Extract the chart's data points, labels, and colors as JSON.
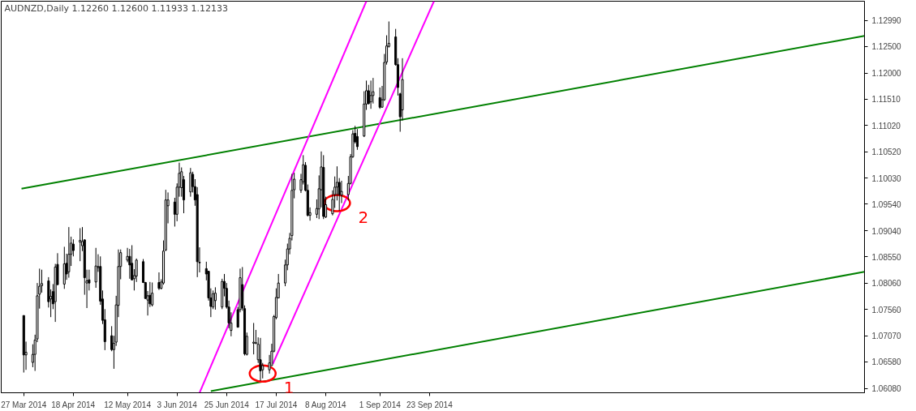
{
  "chart_data": {
    "type": "candlestick",
    "title": "AUDNZD,Daily  1.12260 1.12600 1.11933 1.12133",
    "x": [
      "2014-03-27",
      "2014-03-28",
      "2014-03-31",
      "2014-04-01",
      "2014-04-02",
      "2014-04-03",
      "2014-04-04",
      "2014-04-07",
      "2014-04-08",
      "2014-04-09",
      "2014-04-10",
      "2014-04-11",
      "2014-04-14",
      "2014-04-15",
      "2014-04-16",
      "2014-04-17",
      "2014-04-18",
      "2014-04-21",
      "2014-04-22",
      "2014-04-23",
      "2014-04-24",
      "2014-04-25",
      "2014-04-28",
      "2014-04-29",
      "2014-04-30",
      "2014-05-01",
      "2014-05-02",
      "2014-05-05",
      "2014-05-06",
      "2014-05-07",
      "2014-05-08",
      "2014-05-09",
      "2014-05-12",
      "2014-05-13",
      "2014-05-14",
      "2014-05-15",
      "2014-05-16",
      "2014-05-19",
      "2014-05-20",
      "2014-05-21",
      "2014-05-22",
      "2014-05-23",
      "2014-05-26",
      "2014-05-27",
      "2014-05-28",
      "2014-05-29",
      "2014-05-30",
      "2014-06-02",
      "2014-06-03",
      "2014-06-04",
      "2014-06-05",
      "2014-06-06",
      "2014-06-09",
      "2014-06-10",
      "2014-06-11",
      "2014-06-12",
      "2014-06-13",
      "2014-06-16",
      "2014-06-17",
      "2014-06-18",
      "2014-06-19",
      "2014-06-20",
      "2014-06-23",
      "2014-06-24",
      "2014-06-25",
      "2014-06-26",
      "2014-06-27",
      "2014-06-30",
      "2014-07-01",
      "2014-07-02",
      "2014-07-03",
      "2014-07-04",
      "2014-07-07",
      "2014-07-08",
      "2014-07-09",
      "2014-07-10",
      "2014-07-11",
      "2014-07-14",
      "2014-07-15",
      "2014-07-16",
      "2014-07-17",
      "2014-07-18",
      "2014-07-21",
      "2014-07-22",
      "2014-07-23",
      "2014-07-24",
      "2014-07-25",
      "2014-07-28",
      "2014-07-29",
      "2014-07-30",
      "2014-07-31",
      "2014-08-01",
      "2014-08-04",
      "2014-08-05",
      "2014-08-06",
      "2014-08-07",
      "2014-08-08",
      "2014-08-11",
      "2014-08-12",
      "2014-08-13",
      "2014-08-14",
      "2014-08-15",
      "2014-08-18",
      "2014-08-19",
      "2014-08-20",
      "2014-08-21",
      "2014-08-22",
      "2014-08-25",
      "2014-08-26",
      "2014-08-27",
      "2014-08-28",
      "2014-08-29",
      "2014-09-01",
      "2014-09-02",
      "2014-09-03",
      "2014-09-04",
      "2014-09-05",
      "2014-09-08",
      "2014-09-09",
      "2014-09-10",
      "2014-09-11"
    ],
    "ohlc": [
      [
        1.0745,
        1.0745,
        1.0638,
        1.0671
      ],
      [
        1.0671,
        1.0696,
        1.0643,
        1.0676
      ],
      [
        1.0657,
        1.0691,
        1.0648,
        1.0672
      ],
      [
        1.0672,
        1.0709,
        1.0641,
        1.0699
      ],
      [
        1.0701,
        1.0806,
        1.0695,
        1.0782
      ],
      [
        1.0785,
        1.0833,
        1.0758,
        1.08
      ],
      [
        1.0801,
        1.0831,
        1.0788,
        1.0805
      ],
      [
        1.081,
        1.0817,
        1.076,
        1.0771
      ],
      [
        1.0776,
        1.0794,
        1.0742,
        1.0781
      ],
      [
        1.079,
        1.0804,
        1.0757,
        1.0767
      ],
      [
        1.0771,
        1.0842,
        1.0733,
        1.0836
      ],
      [
        1.0841,
        1.0862,
        1.0802,
        1.0803
      ],
      [
        1.0804,
        1.0874,
        1.0795,
        1.0842
      ],
      [
        1.0843,
        1.0861,
        1.0812,
        1.0823
      ],
      [
        1.0827,
        1.0911,
        1.0816,
        1.086
      ],
      [
        1.086,
        1.0893,
        1.0838,
        1.0881
      ],
      [
        1.0879,
        1.0888,
        1.0856,
        1.0867
      ],
      [
        1.0883,
        1.0909,
        1.0847,
        1.0886
      ],
      [
        1.0876,
        1.0911,
        1.0866,
        1.0884
      ],
      [
        1.0887,
        1.0888,
        1.0784,
        1.0816
      ],
      [
        1.0806,
        1.0831,
        1.0759,
        1.081
      ],
      [
        1.0812,
        1.0831,
        1.0792,
        1.0806
      ],
      [
        1.0808,
        1.0872,
        1.0797,
        1.0838
      ],
      [
        1.0835,
        1.086,
        1.0827,
        1.0837
      ],
      [
        1.0837,
        1.0856,
        1.0765,
        1.0772
      ],
      [
        1.0776,
        1.0792,
        1.0729,
        1.0736
      ],
      [
        1.0737,
        1.0757,
        1.068,
        1.0696
      ],
      [
        1.0707,
        1.0725,
        1.0678,
        1.0681
      ],
      [
        1.0681,
        1.0707,
        1.0645,
        1.0693
      ],
      [
        1.0695,
        1.0782,
        1.0688,
        1.0765
      ],
      [
        1.0764,
        1.0869,
        1.0742,
        1.0837
      ],
      [
        1.0837,
        1.0869,
        1.0813,
        1.0863
      ],
      [
        1.0849,
        1.0872,
        1.0845,
        1.0856
      ],
      [
        1.0856,
        1.087,
        1.0814,
        1.084
      ],
      [
        1.0843,
        1.0877,
        1.0811,
        1.0812
      ],
      [
        1.0814,
        1.0832,
        1.0792,
        1.082
      ],
      [
        1.0819,
        1.0852,
        1.0808,
        1.0849
      ],
      [
        1.0846,
        1.0851,
        1.0806,
        1.0807
      ],
      [
        1.0807,
        1.0808,
        1.0776,
        1.0777
      ],
      [
        1.0774,
        1.0791,
        1.0745,
        1.0782
      ],
      [
        1.0783,
        1.0808,
        1.0761,
        1.0767
      ],
      [
        1.0765,
        1.0807,
        1.0762,
        1.0787
      ],
      [
        1.0807,
        1.0826,
        1.0793,
        1.0796
      ],
      [
        1.0796,
        1.0813,
        1.0794,
        1.0808
      ],
      [
        1.0806,
        1.0886,
        1.0803,
        1.0866
      ],
      [
        1.0868,
        1.0981,
        1.0866,
        1.0962
      ],
      [
        1.0951,
        1.0976,
        1.0918,
        1.0962
      ],
      [
        1.0958,
        1.0966,
        1.0912,
        1.0935
      ],
      [
        1.0935,
        1.0993,
        1.0922,
        1.0986
      ],
      [
        1.0986,
        1.1032,
        1.0968,
        1.1012
      ],
      [
        1.0985,
        1.1023,
        1.0968,
        1.1015
      ],
      [
        1.1,
        1.1007,
        1.0937,
        1.0962
      ],
      [
        1.0977,
        1.1022,
        1.0968,
        1.1013
      ],
      [
        1.101,
        1.1015,
        1.0976,
        1.0987
      ],
      [
        1.0987,
        1.1001,
        1.0951,
        1.0962
      ],
      [
        1.0972,
        1.0986,
        1.0817,
        1.0846
      ],
      [
        1.0845,
        1.0873,
        1.0826,
        1.0844
      ],
      [
        1.0833,
        1.0846,
        1.0811,
        1.0823
      ],
      [
        1.0828,
        1.0829,
        1.0773,
        1.0778
      ],
      [
        1.0778,
        1.0796,
        1.0742,
        1.0762
      ],
      [
        1.0761,
        1.0792,
        1.0757,
        1.0786
      ],
      [
        1.0773,
        1.0798,
        1.0756,
        1.0787
      ],
      [
        1.0761,
        1.0814,
        1.0757,
        1.0809
      ],
      [
        1.0809,
        1.0823,
        1.0781,
        1.0796
      ],
      [
        1.0796,
        1.0806,
        1.0758,
        1.0761
      ],
      [
        1.0761,
        1.0773,
        1.0721,
        1.0731
      ],
      [
        1.0717,
        1.0751,
        1.0706,
        1.0731
      ],
      [
        1.0756,
        1.0761,
        1.0723,
        1.0723
      ],
      [
        1.0756,
        1.0833,
        1.0751,
        1.0816
      ],
      [
        1.0803,
        1.0836,
        1.0754,
        1.0759
      ],
      [
        1.0758,
        1.0764,
        1.067,
        1.0673
      ],
      [
        1.0672,
        1.0713,
        1.067,
        1.0706
      ],
      [
        1.0693,
        1.0731,
        1.0672,
        1.0695
      ],
      [
        1.0693,
        1.0718,
        1.0691,
        1.0694
      ],
      [
        1.0662,
        1.0704,
        1.0656,
        1.0691
      ],
      [
        1.0662,
        1.0703,
        1.0622,
        1.0641
      ],
      [
        1.0643,
        1.0656,
        1.0627,
        1.0651
      ],
      [
        1.0643,
        1.0671,
        1.0636,
        1.0656
      ],
      [
        1.0651,
        1.0692,
        1.0651,
        1.0678
      ],
      [
        1.0678,
        1.0746,
        1.0676,
        1.0743
      ],
      [
        1.0741,
        1.0796,
        1.0738,
        1.0779
      ],
      [
        1.0778,
        1.0823,
        1.0778,
        1.0806
      ],
      [
        1.0806,
        1.085,
        1.08,
        1.084
      ],
      [
        1.084,
        1.088,
        1.083,
        1.087
      ],
      [
        1.087,
        1.09,
        1.086,
        1.089
      ],
      [
        1.0895,
        1.1011,
        1.0886,
        1.098
      ],
      [
        1.0981,
        1.1013,
        1.0965,
        1.1001
      ],
      [
        1.098,
        1.1011,
        1.0975,
        1.1
      ],
      [
        1.0996,
        1.1046,
        1.0991,
        1.1028
      ],
      [
        1.1027,
        1.1033,
        1.0978,
        1.098
      ],
      [
        1.098,
        1.0991,
        1.0931,
        1.0933
      ],
      [
        1.0933,
        1.0948,
        1.0923,
        1.0938
      ],
      [
        1.0935,
        1.0963,
        1.0928,
        1.0946
      ],
      [
        1.0945,
        1.1008,
        1.0926,
        1.0983
      ],
      [
        1.0981,
        1.1053,
        1.0948,
        1.1024
      ],
      [
        1.1023,
        1.1046,
        1.0926,
        1.0931
      ],
      [
        1.093,
        1.0968,
        1.0928,
        1.0953
      ],
      [
        1.0936,
        1.098,
        1.0933,
        1.0963
      ],
      [
        1.0972,
        1.1006,
        1.0947,
        1.0986
      ],
      [
        1.0986,
        1.1025,
        1.0961,
        1.0995
      ],
      [
        1.0995,
        1.1003,
        1.0942,
        1.0972
      ],
      [
        1.0971,
        1.0998,
        1.0956,
        1.0978
      ],
      [
        1.0972,
        1.1007,
        1.0961,
        1.0993
      ],
      [
        1.0993,
        1.1048,
        1.0991,
        1.1043
      ],
      [
        1.1043,
        1.1093,
        1.1041,
        1.1086
      ],
      [
        1.1087,
        1.1101,
        1.1068,
        1.1071
      ],
      [
        1.1081,
        1.1095,
        1.1056,
        1.1062
      ],
      [
        1.1082,
        1.1166,
        1.108,
        1.1142
      ],
      [
        1.1142,
        1.1186,
        1.1131,
        1.1167
      ],
      [
        1.1167,
        1.1178,
        1.1141,
        1.1143
      ],
      [
        1.1146,
        1.1186,
        1.1133,
        1.1158
      ],
      [
        1.1158,
        1.1191,
        1.1143,
        1.1165
      ],
      [
        1.1154,
        1.1173,
        1.1133,
        1.1136
      ],
      [
        1.1136,
        1.1176,
        1.1136,
        1.115
      ],
      [
        1.115,
        1.1236,
        1.1148,
        1.122
      ],
      [
        1.1221,
        1.1271,
        1.1216,
        1.1251
      ],
      [
        1.125,
        1.1297,
        1.1248,
        1.1256
      ],
      [
        1.1268,
        1.1283,
        1.1214,
        1.1216
      ],
      [
        1.1216,
        1.1228,
        1.1158,
        1.1173
      ],
      [
        1.1161,
        1.1163,
        1.109,
        1.1118
      ],
      [
        1.1131,
        1.1228,
        1.1111,
        1.1188
      ]
    ],
    "series": [
      {
        "type": "line",
        "color": "#008000",
        "x": [
          "2014-03-26",
          "2015-04-04"
        ],
        "values": [
          1.0983,
          1.127
        ]
      },
      {
        "type": "line",
        "color": "#008000",
        "x": [
          "2014-06-18",
          "2015-04-04"
        ],
        "values": [
          1.0603,
          1.0827
        ]
      },
      {
        "type": "line",
        "color": "#ff00ff",
        "x": [
          "2014-06-13",
          "2014-08-26"
        ],
        "values": [
          1.06,
          1.1335
        ]
      },
      {
        "type": "line",
        "color": "#ff00ff",
        "x": [
          "2014-07-15T12:00",
          "2014-09-25"
        ],
        "values": [
          1.0654,
          1.1335
        ]
      }
    ],
    "annotations": [
      {
        "text": "1",
        "x": "2014-07-11",
        "y": 1.0636
      },
      {
        "text": "2",
        "x": "2014-08-13",
        "y": 1.0956
      }
    ],
    "xlim": [
      "2014-03-17",
      "2015-04-04"
    ],
    "xticks": [
      {
        "value": "2014-03-27",
        "label": "27 Mar 2014"
      },
      {
        "value": "2014-04-18",
        "label": "18 Apr 2014"
      },
      {
        "value": "2014-05-12",
        "label": "12 May 2014"
      },
      {
        "value": "2014-06-03",
        "label": "3 Jun 2014"
      },
      {
        "value": "2014-06-25",
        "label": "25 Jun 2014"
      },
      {
        "value": "2014-07-17",
        "label": "17 Jul 2014"
      },
      {
        "value": "2014-08-08",
        "label": "8 Aug 2014"
      },
      {
        "value": "2014-09-01",
        "label": "1 Sep 2014"
      },
      {
        "value": "2014-09-23",
        "label": "23 Sep 2014"
      }
    ],
    "ylim": [
      1.06,
      1.1335
    ],
    "yticks": [
      {
        "value": 1.1299,
        "label": "1.12990"
      },
      {
        "value": 1.125,
        "label": "1.12500"
      },
      {
        "value": 1.12,
        "label": "1.12000"
      },
      {
        "value": 1.1151,
        "label": "1.11510"
      },
      {
        "value": 1.1102,
        "label": "1.11020"
      },
      {
        "value": 1.1052,
        "label": "1.10520"
      },
      {
        "value": 1.1003,
        "label": "1.10030"
      },
      {
        "value": 1.0954,
        "label": "1.09540"
      },
      {
        "value": 1.0904,
        "label": "1.09040"
      },
      {
        "value": 1.0855,
        "label": "1.08550"
      },
      {
        "value": 1.0806,
        "label": "1.08060"
      },
      {
        "value": 1.0756,
        "label": "1.07560"
      },
      {
        "value": 1.0707,
        "label": "1.07070"
      },
      {
        "value": 1.0658,
        "label": "1.06580"
      },
      {
        "value": 1.0608,
        "label": "1.06080"
      }
    ],
    "grid": false
  }
}
